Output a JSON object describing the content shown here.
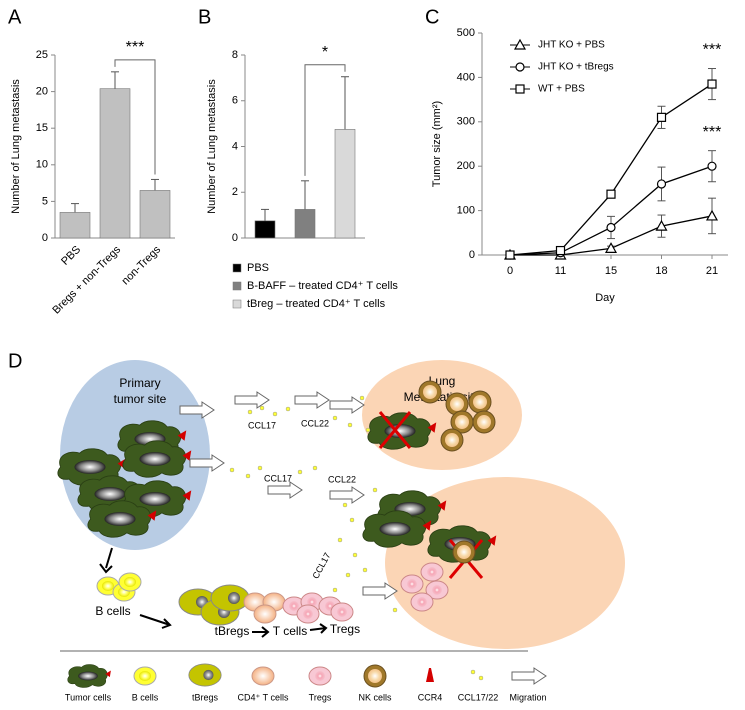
{
  "panel_labels": [
    "A",
    "B",
    "C",
    "D"
  ],
  "chart_data": [
    {
      "type": "bar",
      "ylabel": "Number of Lung metastasis",
      "categories": [
        "PBS",
        "Bregs + non-Tregs",
        "non-Tregs"
      ],
      "values": [
        3.5,
        20.4,
        6.5
      ],
      "errors": [
        1.2,
        2.3,
        1.5
      ],
      "color": "#c0c0c0",
      "ylim": [
        0,
        25
      ],
      "yticks": [
        0,
        5,
        10,
        15,
        20,
        25
      ],
      "annotation": "***"
    },
    {
      "type": "bar",
      "ylabel": "Number of Lung metastasis",
      "categories": [
        "PBS",
        "B-BAFF – treated CD4⁺ T cells",
        "tBreg – treated CD4⁺ T cells"
      ],
      "values": [
        0.75,
        1.25,
        4.75
      ],
      "errors": [
        0.5,
        1.25,
        2.3
      ],
      "colors": [
        "#000000",
        "#808080",
        "#d9d9d9"
      ],
      "legend": true,
      "ylim": [
        0,
        8
      ],
      "yticks": [
        0,
        2,
        4,
        6,
        8
      ],
      "annotation": "*"
    },
    {
      "type": "line",
      "xlabel": "Day",
      "ylabel": "Tumor size (mm²)",
      "categories": [
        "0",
        "11",
        "15",
        "18",
        "21"
      ],
      "series": [
        {
          "name": "JHT KO + PBS",
          "color": "#000000",
          "marker": "triangle",
          "values": [
            0,
            0,
            15,
            65,
            88
          ],
          "errors": [
            0,
            0,
            5,
            25,
            40
          ]
        },
        {
          "name": "JHT KO + tBregs",
          "color": "#000000",
          "marker": "circle",
          "values": [
            0,
            5,
            62,
            160,
            200
          ],
          "errors": [
            0,
            2,
            25,
            38,
            35
          ]
        },
        {
          "name": "WT + PBS",
          "color": "#000000",
          "marker": "square",
          "values": [
            0,
            10,
            137,
            310,
            385
          ],
          "errors": [
            0,
            3,
            8,
            25,
            35
          ]
        }
      ],
      "ylim": [
        0,
        500
      ],
      "yticks": [
        0,
        100,
        200,
        300,
        400,
        500
      ],
      "annotations": [
        "***",
        "***"
      ]
    }
  ],
  "diagram": {
    "primary_site": [
      "Primary",
      "tumor site"
    ],
    "metastatic_site": [
      "Lung",
      "Metastatic site"
    ],
    "chemokine_labels": [
      "CCL17",
      "CCL22",
      "CCL17",
      "CCL22",
      "CCL17"
    ],
    "flow_labels": [
      "B cells",
      "tBregs",
      "T cells",
      "Tregs"
    ],
    "legend": [
      "Tumor cells",
      "B cells",
      "tBregs",
      "CD4⁺ T cells",
      "Tregs",
      "NK cells",
      "CCR4",
      "CCL17/22",
      "Migration"
    ]
  }
}
